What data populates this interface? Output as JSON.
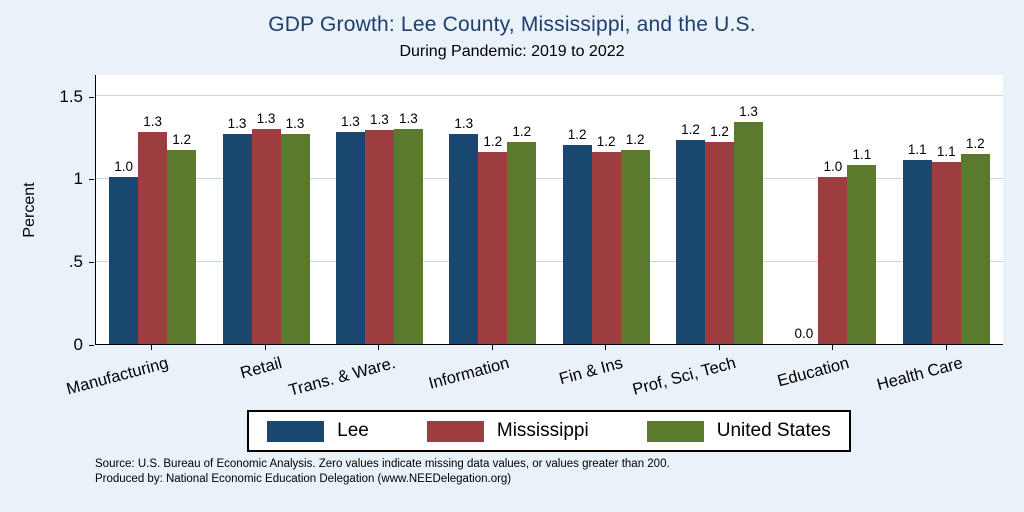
{
  "title": "GDP Growth: Lee County, Mississippi, and the U.S.",
  "subtitle": "During Pandemic: 2019 to 2022",
  "footer": {
    "line1": "Source: U.S. Bureau of Economic Analysis. Zero values indicate missing data values, or values greater than 200.",
    "line2": "Produced by: National Economic Education Delegation (www.NEEDelegation.org)"
  },
  "colors": {
    "background": "#e9f1f9",
    "title_text": "#1f3d6d",
    "gridline": "#c5d8ea",
    "axis": "#000000",
    "plot_background": "#ffffff"
  },
  "chart_data": {
    "type": "bar",
    "title": "GDP Growth: Lee County, Mississippi, and the U.S.",
    "subtitle": "During Pandemic: 2019 to 2022",
    "xlabel": "",
    "ylabel": "Percent",
    "ylim": [
      0,
      1.63
    ],
    "ytick_values": [
      0,
      0.5,
      1,
      1.5
    ],
    "ytick_labels": [
      "0",
      ".5",
      "1",
      "1.5"
    ],
    "grid": true,
    "legend_position": "bottom",
    "categories": [
      "Manufacturing",
      "Retail",
      "Trans. & Ware.",
      "Information",
      "Fin & Ins",
      "Prof, Sci, Tech",
      "Education",
      "Health Care"
    ],
    "series": [
      {
        "name": "Lee",
        "color": "#1a476f",
        "values": [
          1.01,
          1.27,
          1.28,
          1.27,
          1.2,
          1.23,
          0.0,
          1.11
        ],
        "labels": [
          "1.0",
          "1.3",
          "1.3",
          "1.3",
          "1.2",
          "1.2",
          "0.0",
          "1.1"
        ]
      },
      {
        "name": "Mississippi",
        "color": "#9d3d3f",
        "values": [
          1.28,
          1.3,
          1.29,
          1.16,
          1.16,
          1.22,
          1.01,
          1.1
        ],
        "labels": [
          "1.3",
          "1.3",
          "1.3",
          "1.2",
          "1.2",
          "1.2",
          "1.0",
          "1.1"
        ]
      },
      {
        "name": "United States",
        "color": "#5b7a2e",
        "values": [
          1.17,
          1.27,
          1.3,
          1.22,
          1.17,
          1.34,
          1.08,
          1.15
        ],
        "labels": [
          "1.2",
          "1.3",
          "1.3",
          "1.2",
          "1.2",
          "1.3",
          "1.1",
          "1.2"
        ]
      }
    ]
  }
}
